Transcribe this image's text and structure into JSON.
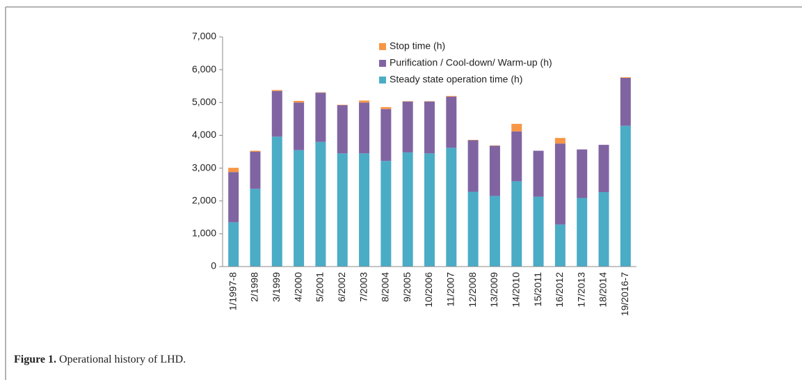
{
  "chart_data": {
    "type": "stacked_bar",
    "categories": [
      "1/1997-8",
      "2/1998",
      "3/1999",
      "4/2000",
      "5/2001",
      "6/2002",
      "7/2003",
      "8/2004",
      "9/2005",
      "10/2006",
      "11/2007",
      "12/2008",
      "13/2009",
      "14/2010",
      "15/2011",
      "16/2012",
      "17/2013",
      "18/2014",
      "19/2016-7"
    ],
    "series": [
      {
        "name": "Steady state operation time (h)",
        "color": "#4bacc6",
        "values": [
          1350,
          2370,
          3960,
          3550,
          3800,
          3450,
          3450,
          3220,
          3480,
          3450,
          3620,
          2280,
          2150,
          2600,
          2130,
          1280,
          2090,
          2270,
          4290
        ]
      },
      {
        "name": "Purification / Cool-down/ Warm-up (h)",
        "color": "#8064a2",
        "values": [
          1530,
          1130,
          1390,
          1450,
          1500,
          1470,
          1550,
          1580,
          1550,
          1580,
          1560,
          1570,
          1530,
          1520,
          1400,
          2470,
          1480,
          1440,
          1460
        ]
      },
      {
        "name": "Stop time (h)",
        "color": "#f79646",
        "values": [
          130,
          30,
          30,
          50,
          10,
          10,
          60,
          60,
          10,
          10,
          20,
          10,
          10,
          230,
          0,
          170,
          0,
          0,
          20
        ]
      }
    ],
    "ylim": [
      0,
      7000
    ],
    "yticks": [
      0,
      {
        "value": 1000,
        "label": "1,000"
      },
      {
        "value": 2000,
        "label": "2,000"
      },
      {
        "value": 3000,
        "label": "3,000"
      },
      {
        "value": 4000,
        "label": "4,000"
      },
      {
        "value": 5000,
        "label": "5,000"
      },
      {
        "value": 6000,
        "label": "6,000"
      },
      {
        "value": 7000,
        "label": "7,000"
      }
    ],
    "legend": "top",
    "caption_label": "Figure 1.",
    "caption": "Operational history of LHD."
  }
}
